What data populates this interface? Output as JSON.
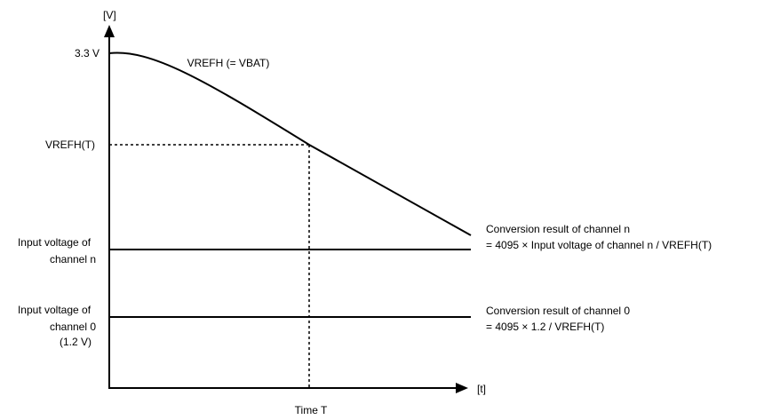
{
  "axes": {
    "y_unit": "[V]",
    "x_unit": "[t]"
  },
  "y_labels": {
    "v33": "3.3 V",
    "vrefh_t": "VREFH(T)",
    "input_n_line1": "Input voltage of",
    "input_n_line2": "channel n",
    "input_0_line1": "Input voltage of",
    "input_0_line2": "channel 0",
    "input_0_line3": "(1.2 V)"
  },
  "curve_label": "VREFH (= VBAT)",
  "x_label": "Time T",
  "annotations": {
    "channel_n_line1": "Conversion result of channel n",
    "channel_n_line2": "= 4095 × Input voltage of channel n / VREFH(T)",
    "channel_0_line1": "Conversion result of channel 0",
    "channel_0_line2": "= 4095 × 1.2 / VREFH(T)"
  },
  "colors": {
    "line": "#000000",
    "background": "#ffffff"
  }
}
